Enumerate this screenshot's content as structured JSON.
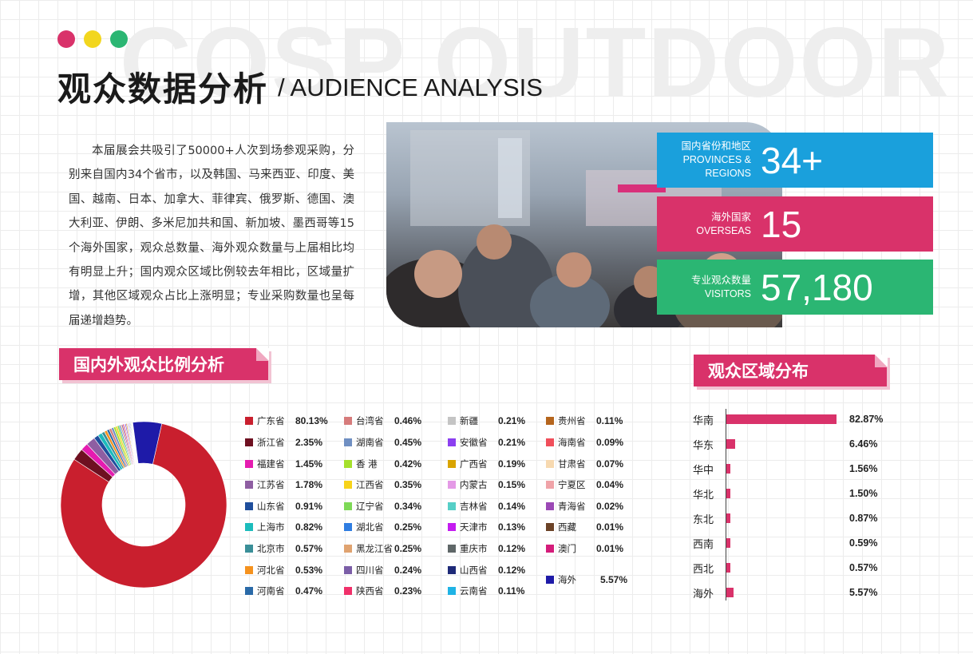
{
  "watermark": "COSP OUTDOOR",
  "colors": {
    "accent": "#d9326a",
    "dot1": "#d9326a",
    "dot2": "#f2d61e",
    "dot3": "#2bb673",
    "stat1": "#1aa0dc",
    "stat2": "#d9326a",
    "stat3": "#2bb673"
  },
  "title": {
    "cn": "观众数据分析",
    "en": "/ AUDIENCE ANALYSIS"
  },
  "intro": "本届展会共吸引了50000+人次到场参观采购，分别来自国内34个省市，以及韩国、马来西亚、印度、美国、越南、日本、加拿大、菲律宾、俄罗斯、德国、澳大利亚、伊朗、多米尼加共和国、新加坡、墨西哥等15个海外国家，观众总数量、海外观众数量与上届相比均有明显上升；国内观众区域比例较去年相比，区域量扩增，其他区域观众占比上涨明显；专业采购数量也呈每届递增趋势。",
  "stats": [
    {
      "label_cn": "国内省份和地区",
      "label_en": "PROVINCES & REGIONS",
      "value": "34+"
    },
    {
      "label_cn": "海外国家",
      "label_en": "OVERSEAS",
      "value": "15"
    },
    {
      "label_cn": "专业观众数量",
      "label_en": "VISITORS",
      "value": "57,180"
    }
  ],
  "sections": {
    "ratio": "国内外观众比例分析",
    "region": "观众区域分布"
  },
  "chart_data": [
    {
      "type": "pie",
      "donut": true,
      "slices": [
        {
          "name": "广东省",
          "value": 80.13,
          "label": "80.13%",
          "color": "#c91f2e"
        },
        {
          "name": "浙江省",
          "value": 2.35,
          "label": "2.35%",
          "color": "#6e1020"
        },
        {
          "name": "福建省",
          "value": 1.45,
          "label": "1.45%",
          "color": "#e51cb0"
        },
        {
          "name": "江苏省",
          "value": 1.78,
          "label": "1.78%",
          "color": "#8e5ea2"
        },
        {
          "name": "山东省",
          "value": 0.91,
          "label": "0.91%",
          "color": "#1f4e9c"
        },
        {
          "name": "上海市",
          "value": 0.82,
          "label": "0.82%",
          "color": "#1cbcbc"
        },
        {
          "name": "北京市",
          "value": 0.57,
          "label": "0.57%",
          "color": "#3a8f98"
        },
        {
          "name": "河北省",
          "value": 0.53,
          "label": "0.53%",
          "color": "#f5921e"
        },
        {
          "name": "河南省",
          "value": 0.47,
          "label": "0.47%",
          "color": "#2a6aa8"
        },
        {
          "name": "台湾省",
          "value": 0.46,
          "label": "0.46%",
          "color": "#d67b7b"
        },
        {
          "name": "湖南省",
          "value": 0.45,
          "label": "0.45%",
          "color": "#6f8fc2"
        },
        {
          "name": "香 港",
          "value": 0.42,
          "label": "0.42%",
          "color": "#a5e02c"
        },
        {
          "name": "江西省",
          "value": 0.35,
          "label": "0.35%",
          "color": "#f7d31a"
        },
        {
          "name": "辽宁省",
          "value": 0.34,
          "label": "0.34%",
          "color": "#7ed957"
        },
        {
          "name": "湖北省",
          "value": 0.25,
          "label": "0.25%",
          "color": "#2f7de1"
        },
        {
          "name": "黑龙江省",
          "value": 0.25,
          "label": "0.25%",
          "color": "#e0a370"
        },
        {
          "name": "四川省",
          "value": 0.24,
          "label": "0.24%",
          "color": "#7b5ea7"
        },
        {
          "name": "陕西省",
          "value": 0.23,
          "label": "0.23%",
          "color": "#f0306a"
        },
        {
          "name": "新疆",
          "value": 0.21,
          "label": "0.21%",
          "color": "#c4c4c4"
        },
        {
          "name": "安徽省",
          "value": 0.21,
          "label": "0.21%",
          "color": "#8b3ff0"
        },
        {
          "name": "广西省",
          "value": 0.19,
          "label": "0.19%",
          "color": "#d9a400"
        },
        {
          "name": "内蒙古",
          "value": 0.15,
          "label": "0.15%",
          "color": "#e49ae6"
        },
        {
          "name": "吉林省",
          "value": 0.14,
          "label": "0.14%",
          "color": "#56cfc7"
        },
        {
          "name": "天津市",
          "value": 0.13,
          "label": "0.13%",
          "color": "#c41cf0"
        },
        {
          "name": "重庆市",
          "value": 0.12,
          "label": "0.12%",
          "color": "#5f6768"
        },
        {
          "name": "山西省",
          "value": 0.12,
          "label": "0.12%",
          "color": "#1e2a78"
        },
        {
          "name": "云南省",
          "value": 0.11,
          "label": "0.11%",
          "color": "#1fb3e5"
        },
        {
          "name": "贵州省",
          "value": 0.11,
          "label": "0.11%",
          "color": "#b5651d"
        },
        {
          "name": "海南省",
          "value": 0.09,
          "label": "0.09%",
          "color": "#f04e5a"
        },
        {
          "name": "甘肃省",
          "value": 0.07,
          "label": "0.07%",
          "color": "#f7d9b0"
        },
        {
          "name": "宁夏区",
          "value": 0.04,
          "label": "0.04%",
          "color": "#f0a3a8"
        },
        {
          "name": "青海省",
          "value": 0.02,
          "label": "0.02%",
          "color": "#9b48b5"
        },
        {
          "name": "西藏",
          "value": 0.01,
          "label": "0.01%",
          "color": "#6b4226"
        },
        {
          "name": "澳门",
          "value": 0.01,
          "label": "0.01%",
          "color": "#d41c7a"
        },
        {
          "name": "海外",
          "value": 5.57,
          "label": "5.57%",
          "color": "#1e1aa8"
        }
      ]
    },
    {
      "type": "bar",
      "orientation": "horizontal",
      "categories": [
        "华南",
        "华东",
        "华中",
        "华北",
        "东北",
        "西南",
        "西北",
        "海外"
      ],
      "values": [
        82.87,
        6.46,
        1.56,
        1.5,
        0.87,
        0.59,
        0.57,
        5.57
      ],
      "labels": [
        "82.87%",
        "6.46%",
        "1.56%",
        "1.50%",
        "0.87%",
        "0.59%",
        "0.57%",
        "5.57%"
      ],
      "color": "#d9326a"
    }
  ]
}
